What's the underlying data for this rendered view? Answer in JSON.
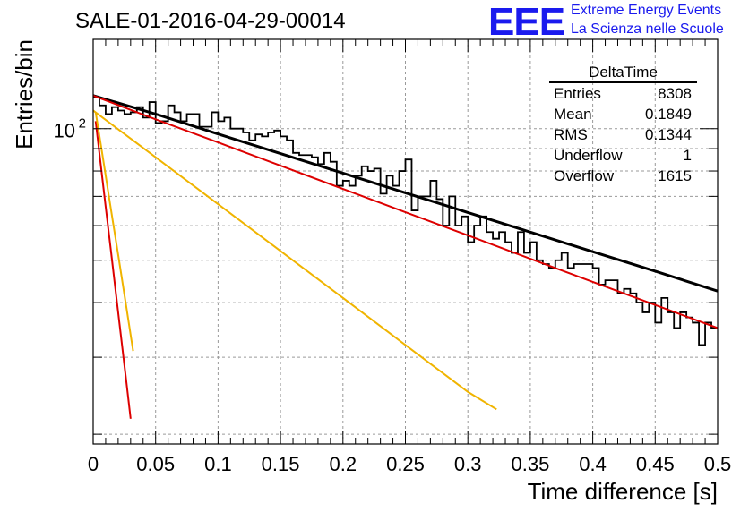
{
  "header": {
    "title": "SALE-01-2016-04-29-00014",
    "logo_text": "EEE",
    "logo_line1": "Extreme Energy Events",
    "logo_line2": "La Scienza nelle Scuole"
  },
  "chart_data": {
    "type": "histogram",
    "xlabel": "Time difference [s]",
    "ylabel": "Entries/bin",
    "xlim": [
      0,
      0.5
    ],
    "ylim": [
      19,
      160
    ],
    "y_scale": "log",
    "grid": true,
    "x_ticks": [
      0,
      0.05,
      0.1,
      0.15,
      0.2,
      0.25,
      0.3,
      0.35,
      0.4,
      0.45,
      0.5
    ],
    "x_tick_labels": [
      "0",
      "0.05",
      "0.1",
      "0.15",
      "0.2",
      "0.25",
      "0.3",
      "0.35",
      "0.4",
      "0.45",
      "0.5"
    ],
    "y_major_tick": 100,
    "y_major_tick_label": "10",
    "y_major_tick_exp": "2",
    "bin_width": 0.005,
    "histogram": {
      "name": "DeltaTime",
      "color": "#000000",
      "values": [
        118,
        113,
        108,
        112,
        110,
        108,
        109,
        112,
        106,
        115,
        103,
        104,
        113,
        109,
        104,
        108,
        108,
        101,
        101,
        109,
        104,
        106,
        100,
        100,
        98,
        94,
        97,
        96,
        98,
        99,
        96,
        94,
        88,
        87,
        87,
        86,
        83,
        88,
        84,
        74,
        76,
        74,
        78,
        82,
        80,
        81,
        71,
        78,
        74,
        80,
        85,
        65,
        70,
        70,
        76,
        69,
        60,
        70,
        60,
        63,
        55,
        60,
        63,
        58,
        56,
        58,
        55,
        52,
        58,
        52,
        55,
        50,
        49,
        48,
        50,
        52,
        48,
        49,
        49,
        49,
        48,
        44,
        45,
        45,
        42,
        43,
        42,
        40,
        38,
        40,
        36,
        41,
        38,
        35,
        38,
        37,
        36,
        32,
        36,
        35
      ]
    },
    "fits": [
      {
        "name": "total",
        "color": "#000000",
        "x": [
          0,
          0.05,
          0.1,
          0.15,
          0.2,
          0.25,
          0.3,
          0.35,
          0.4,
          0.45,
          0.5
        ],
        "y": [
          119,
          108,
          97.2,
          87.7,
          79.1,
          71.3,
          64.3,
          58.0,
          52.3,
          47.2,
          42.5
        ]
      },
      {
        "name": "component-slow",
        "color": "#dd0000",
        "x": [
          0,
          0.05,
          0.1,
          0.15,
          0.2,
          0.25,
          0.3,
          0.35,
          0.4,
          0.45,
          0.5
        ],
        "y": [
          119,
          105,
          93,
          82.3,
          72.8,
          64.4,
          57.0,
          50.4,
          44.6,
          39.5,
          35.0
        ]
      },
      {
        "name": "component-fast",
        "color": "#f0b400",
        "x": [
          0,
          0.05,
          0.1,
          0.15,
          0.2,
          0.25,
          0.3,
          0.323
        ],
        "y": [
          110,
          86,
          67.2,
          52.5,
          41.0,
          32.0,
          25.0,
          22.8
        ]
      },
      {
        "name": "component-veryfast-red",
        "color": "#dd0000",
        "x": [
          0.002,
          0.006,
          0.01,
          0.014,
          0.018,
          0.022,
          0.026,
          0.03
        ],
        "y": [
          104,
          83,
          66.3,
          53.2,
          42.5,
          34.0,
          27.2,
          21.7
        ]
      },
      {
        "name": "component-veryfast-yellow",
        "color": "#f0b400",
        "x": [
          0.002,
          0.008,
          0.014,
          0.02,
          0.026,
          0.032
        ],
        "y": [
          109,
          85,
          66,
          51.5,
          40,
          31
        ]
      }
    ],
    "stats_box": {
      "title": "DeltaTime",
      "rows": [
        {
          "label": "Entries",
          "value": "8308"
        },
        {
          "label": "Mean",
          "value": "0.1849"
        },
        {
          "label": "RMS",
          "value": "0.1344"
        },
        {
          "label": "Underflow",
          "value": "1"
        },
        {
          "label": "Overflow",
          "value": "1615"
        }
      ]
    }
  }
}
